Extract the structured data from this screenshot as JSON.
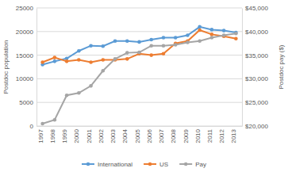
{
  "chart_data": {
    "type": "line",
    "y_label": "Postdoc population",
    "y2_label": "Postdoc pay ($)",
    "categories": [
      "1997",
      "1998",
      "1999",
      "2000",
      "2001",
      "2002",
      "2003",
      "2004",
      "2005",
      "2006",
      "2007",
      "2008",
      "2009",
      "2010",
      "2011",
      "2012",
      "2013"
    ],
    "series": [
      {
        "name": "International",
        "color": "#5b9bd5",
        "marker": "circle",
        "values": [
          13000,
          13700,
          14300,
          15900,
          17000,
          16900,
          18000,
          18000,
          17800,
          18300,
          18700,
          18700,
          19200,
          21000,
          20400,
          20200,
          19800
        ]
      },
      {
        "name": "US",
        "color": "#ed7d31",
        "marker": "circle",
        "values": [
          13500,
          14500,
          13700,
          14000,
          13500,
          14000,
          14000,
          14200,
          15300,
          15000,
          15300,
          17500,
          18000,
          20300,
          19400,
          19000,
          18500
        ]
      },
      {
        "name": "Pay",
        "color": "#a5a5a5",
        "marker": "circle",
        "axis": "y2",
        "values": [
          20500,
          21300,
          26500,
          27000,
          28500,
          31700,
          34200,
          35500,
          35600,
          37000,
          37000,
          37200,
          37700,
          38000,
          38700,
          39200,
          39600
        ]
      }
    ],
    "ylim": [
      0,
      25000
    ],
    "yticks": [
      0,
      5000,
      10000,
      15000,
      20000,
      25000
    ],
    "y2lim": [
      20000,
      45000
    ],
    "y2ticks": [
      {
        "value": 20000,
        "label": "$20,000"
      },
      {
        "value": 25000,
        "label": "$25,000"
      },
      {
        "value": 30000,
        "label": "$30,000"
      },
      {
        "value": 35000,
        "label": "$35,000"
      },
      {
        "value": 40000,
        "label": "$40,000"
      },
      {
        "value": 45000,
        "label": "$45,000"
      }
    ],
    "grid": true,
    "legend": "bottom"
  }
}
